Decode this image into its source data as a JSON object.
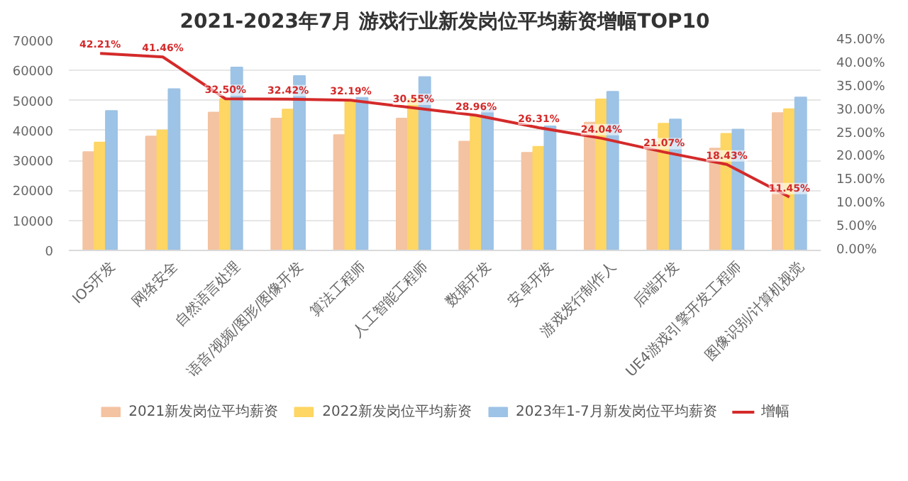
{
  "chart_data": {
    "type": "bar",
    "title": "2021-2023年7月 游戏行业新发岗位平均薪资增幅TOP10",
    "categories": [
      "IOS开发",
      "网络安全",
      "自然语言处理",
      "语音/视频/图形/图像开发",
      "算法工程师",
      "人工智能工程师",
      "数据开发",
      "安卓开发",
      "游戏发行制作人",
      "后端开发",
      "UE4游戏引擎开发工程师",
      "图像识别/计算机视觉"
    ],
    "series": [
      {
        "name": "2021新发岗位平均薪资",
        "color": "#f4c3a1",
        "values": [
          32800,
          38000,
          46000,
          44000,
          38500,
          44000,
          36300,
          32600,
          42600,
          36100,
          34000,
          45800
        ]
      },
      {
        "name": "2022新发岗位平均薪资",
        "color": "#fdd663",
        "values": [
          36000,
          40000,
          50500,
          47000,
          50000,
          50500,
          45000,
          34600,
          50400,
          42300,
          38900,
          47100
        ]
      },
      {
        "name": "2023年1-7月新发岗位平均薪资",
        "color": "#9dc3e6",
        "values": [
          46500,
          53800,
          61000,
          58200,
          51000,
          57800,
          46900,
          41400,
          52900,
          43700,
          40300,
          51000
        ]
      },
      {
        "name": "增幅",
        "type": "line",
        "axis": "y2",
        "color": "#d42a2a",
        "values": [
          42.21,
          41.46,
          32.5,
          32.42,
          32.19,
          30.55,
          28.96,
          26.31,
          24.04,
          21.07,
          18.43,
          11.45
        ],
        "value_labels": [
          "42.21%",
          "41.46%",
          "32.50%",
          "32.42%",
          "32.19%",
          "30.55%",
          "28.96%",
          "26.31%",
          "24.04%",
          "21.07%",
          "18.43%",
          "11.45%"
        ]
      }
    ],
    "ylim": [
      0,
      70000
    ],
    "yticks": [
      0,
      10000,
      20000,
      30000,
      40000,
      50000,
      60000,
      70000
    ],
    "y2lim": [
      0,
      45
    ],
    "y2ticks": [
      {
        "value": 0,
        "label": "0.00%"
      },
      {
        "value": 5,
        "label": "5.00%"
      },
      {
        "value": 10,
        "label": "10.00%"
      },
      {
        "value": 15,
        "label": "15.00%"
      },
      {
        "value": 20,
        "label": "20.00%"
      },
      {
        "value": 25,
        "label": "25.00%"
      },
      {
        "value": 30,
        "label": "30.00%"
      },
      {
        "value": 35,
        "label": "35.00%"
      },
      {
        "value": 40,
        "label": "40.00%"
      },
      {
        "value": 45,
        "label": "45.00%"
      }
    ],
    "grid": "y",
    "legend": "bottom"
  }
}
